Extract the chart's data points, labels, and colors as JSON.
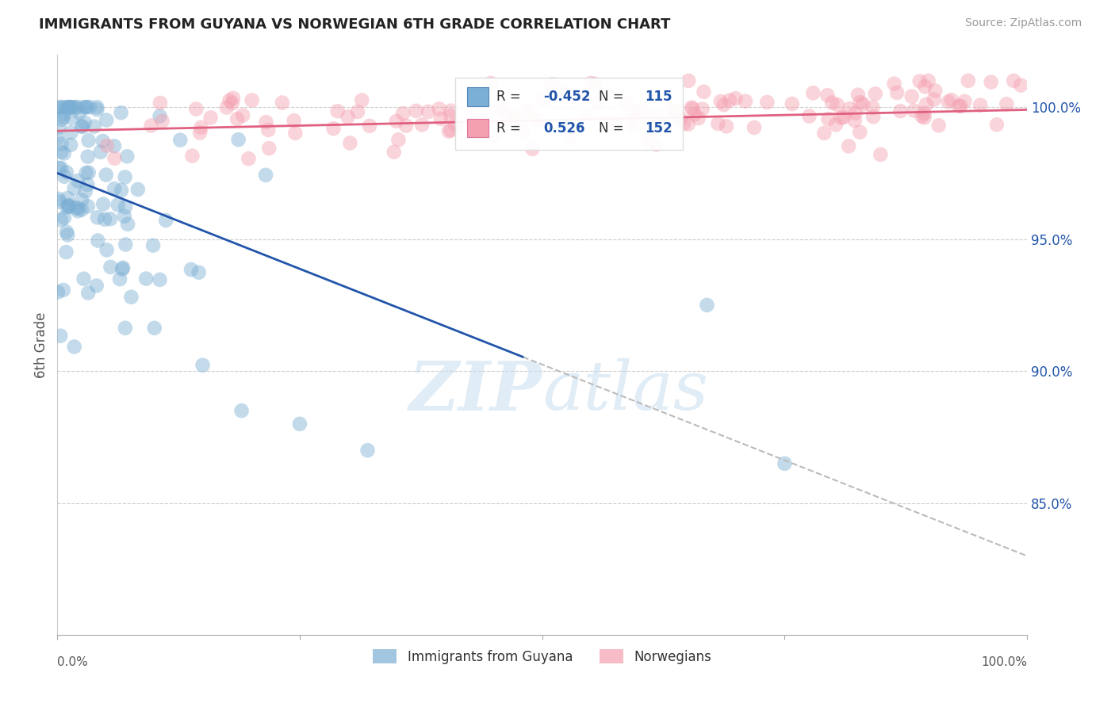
{
  "title": "IMMIGRANTS FROM GUYANA VS NORWEGIAN 6TH GRADE CORRELATION CHART",
  "source": "Source: ZipAtlas.com",
  "ylabel": "6th Grade",
  "right_yticks": [
    100.0,
    95.0,
    90.0,
    85.0
  ],
  "legend_label1": "Immigrants from Guyana",
  "legend_label2": "Norwegians",
  "R1": -0.452,
  "N1": 115,
  "R2": 0.526,
  "N2": 152,
  "color_blue": "#7BAFD4",
  "color_pink": "#F4A0B0",
  "color_blue_line": "#2255AA",
  "color_pink_line": "#E06080",
  "color_dashed": "#BBBBBB",
  "background_color": "#FFFFFF",
  "ymin": 80.0,
  "ymax": 102.0,
  "xmin": 0.0,
  "xmax": 100.0,
  "seed": 99
}
